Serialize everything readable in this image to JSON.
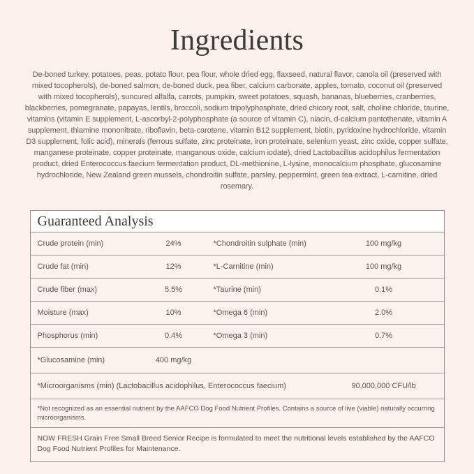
{
  "page": {
    "title": "Ingredients",
    "ingredients_text": "De-boned turkey, potatoes, peas, potato flour, pea flour, whole dried egg, flaxseed, natural flavor, canola oil (preserved with mixed tocopherols), de-boned salmon, de-boned duck, pea fiber, calcium carbonate, apples, tomato, coconut oil (preserved with mixed tocopherols), suncured alfalfa, carrots, pumpkin, sweet potatoes, squash, bananas, blueberries, cranberries, blackberries, pomegranate, papayas, lentils, broccoli, sodium tripolyphosphate, dried chicory root, salt, choline chloride, taurine, vitamins (vitamin E supplement, L-ascorbyl-2-polyphosphate (a source of vitamin C), niacin, d-calcium pantothenate, vitamin A supplement, thiamine mononitrate, riboflavin, beta-carotene, vitamin B12 supplement, biotin, pyridoxine hydrochloride, vitamin D3 supplement, folic acid), minerals (ferrous sulfate, zinc proteinate, iron proteinate, selenium yeast, zinc oxide, copper sulfate, manganese proteinate, copper proteinate, manganous oxide, calcium iodate), dried Lactobacillus acidophilus fermentation product, dried Enterococcus faecium fermentation product, DL-methionine, L-lysine, monocalcium phosphate, glucosamine hydrochloride, New Zealand green mussels, chondroitin sulfate, parsley, peppermint, green tea extract, L-carnitine, dried rosemary."
  },
  "guaranteed_analysis": {
    "heading": "Guaranteed Analysis",
    "rows": [
      {
        "label1": "Crude protein (min)",
        "value1": "24%",
        "label2": "*Chondroitin sulphate (min)",
        "value2": "100 mg/kg"
      },
      {
        "label1": "Crude fat (min)",
        "value1": "12%",
        "label2": "*L-Carnitine (min)",
        "value2": "100 mg/kg"
      },
      {
        "label1": "Crude fiber (max)",
        "value1": "5.5%",
        "label2": "*Taurine (min)",
        "value2": "0.1%"
      },
      {
        "label1": "Moisture (max)",
        "value1": "10%",
        "label2": "*Omega 6 (min)",
        "value2": "2.0%"
      },
      {
        "label1": "Phosphorus (min)",
        "value1": "0.4%",
        "label2": "*Omega 3 (min)",
        "value2": "0.7%"
      }
    ],
    "glucosamine_row": {
      "label": "*Glucosamine (min)",
      "value": "400 mg/kg"
    },
    "microorganisms_row": {
      "label": "*Microorganisms (min) (Lactobacillus acidophilus, Enterococcus faecium)",
      "value": "90,000,000 CFU/lb"
    },
    "footnote": "*Not recognized as an essential nutrient by the AAFCO Dog Food Nutrient Profiles. Contains a source of live (viable) naturally occurring microorganisms.",
    "statement": "NOW FRESH Grain Free Small Breed Senior Recipe is formulated to meet the nutritional levels established by the AAFCO Dog Food Nutrient Profiles for Maintenance."
  },
  "colors": {
    "page_background": "#fbf0eb",
    "table_row_background": "#fdf3ee",
    "table_header_background": "#ffffff",
    "table_border": "#8f8f8f",
    "title_text": "#3a3a37",
    "body_text": "#5d5b58"
  }
}
